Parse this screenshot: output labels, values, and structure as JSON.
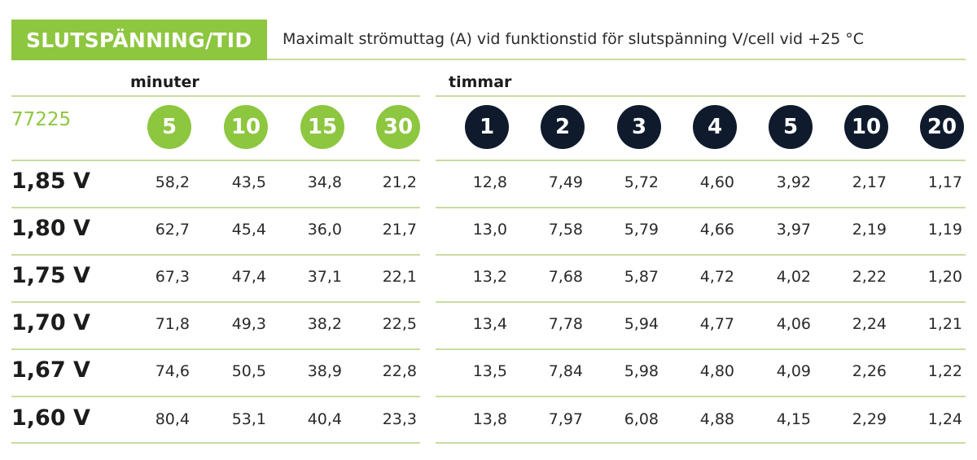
{
  "header": {
    "title": "SLUTSPÄNNING/TID",
    "subtitle": "Maximalt strömuttag (A) vid funktionstid för slutspänning V/cell vid +25 °C"
  },
  "groups": {
    "minutes_label": "minuter",
    "hours_label": "timmar"
  },
  "product": "77225",
  "colors": {
    "green": "#8dc63f",
    "navy": "#0f1b2d",
    "line": "#c8dca0"
  },
  "minute_columns": [
    "5",
    "10",
    "15",
    "30"
  ],
  "hour_columns": [
    "1",
    "2",
    "3",
    "4",
    "5",
    "10",
    "20"
  ],
  "rows": [
    {
      "label": "1,85 V",
      "values": [
        "58,2",
        "43,5",
        "34,8",
        "21,2",
        "12,8",
        "7,49",
        "5,72",
        "4,60",
        "3,92",
        "2,17",
        "1,17"
      ]
    },
    {
      "label": "1,80 V",
      "values": [
        "62,7",
        "45,4",
        "36,0",
        "21,7",
        "13,0",
        "7,58",
        "5,79",
        "4,66",
        "3,97",
        "2,19",
        "1,19"
      ]
    },
    {
      "label": "1,75 V",
      "values": [
        "67,3",
        "47,4",
        "37,1",
        "22,1",
        "13,2",
        "7,68",
        "5,87",
        "4,72",
        "4,02",
        "2,22",
        "1,20"
      ]
    },
    {
      "label": "1,70 V",
      "values": [
        "71,8",
        "49,3",
        "38,2",
        "22,5",
        "13,4",
        "7,78",
        "5,94",
        "4,77",
        "4,06",
        "2,24",
        "1,21"
      ]
    },
    {
      "label": "1,67 V",
      "values": [
        "74,6",
        "50,5",
        "38,9",
        "22,8",
        "13,5",
        "7,84",
        "5,98",
        "4,80",
        "4,09",
        "2,26",
        "1,22"
      ]
    },
    {
      "label": "1,60 V",
      "values": [
        "80,4",
        "53,1",
        "40,4",
        "23,3",
        "13,8",
        "7,97",
        "6,08",
        "4,88",
        "4,15",
        "2,29",
        "1,24"
      ]
    }
  ]
}
